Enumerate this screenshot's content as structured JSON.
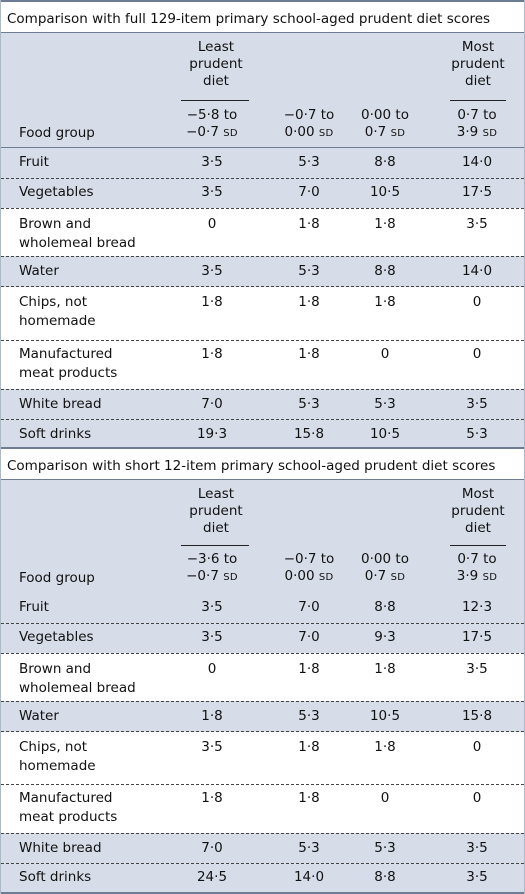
{
  "sections": [
    {
      "title": "Comparison with full 129-item primary school-aged prudent diet scores",
      "least_label": [
        "Least",
        "prudent",
        "diet"
      ],
      "most_label": [
        "Most",
        "prudent",
        "diet"
      ],
      "col_label": "Food group",
      "ranges": [
        {
          "line1": "−5·8 to",
          "line2": "−0·7",
          "unit": "SD"
        },
        {
          "line1": "−0·7 to",
          "line2": "0·00",
          "unit": "SD"
        },
        {
          "line1": "0·00 to",
          "line2": "0·7",
          "unit": "SD"
        },
        {
          "line1": "0·7 to",
          "line2": "3·9",
          "unit": "SD"
        }
      ],
      "rows": [
        {
          "food": [
            "Fruit"
          ],
          "values": [
            "3·5",
            "5·3",
            "8·8",
            "14·0"
          ]
        },
        {
          "food": [
            "Vegetables"
          ],
          "values": [
            "3·5",
            "7·0",
            "10·5",
            "17·5"
          ]
        },
        {
          "food": [
            "Brown and",
            "wholemeal bread"
          ],
          "values": [
            "0",
            "1·8",
            "1·8",
            "3·5"
          ]
        },
        {
          "food": [
            "Water"
          ],
          "values": [
            "3·5",
            "5·3",
            "8·8",
            "14·0"
          ]
        },
        {
          "food": [
            "Chips, not",
            "homemade"
          ],
          "values": [
            "1·8",
            "1·8",
            "1·8",
            "0"
          ]
        },
        {
          "food": [
            "Manufactured",
            "meat products"
          ],
          "values": [
            "1·8",
            "1·8",
            "0",
            "0"
          ]
        },
        {
          "food": [
            "White bread"
          ],
          "values": [
            "7·0",
            "5·3",
            "5·3",
            "3·5"
          ]
        },
        {
          "food": [
            "Soft drinks"
          ],
          "values": [
            "19·3",
            "15·8",
            "10·5",
            "5·3"
          ]
        }
      ]
    },
    {
      "title": "Comparison with short 12-item primary school-aged prudent diet scores",
      "least_label": [
        "Least",
        "prudent",
        "diet"
      ],
      "most_label": [
        "Most",
        "prudent",
        "diet"
      ],
      "col_label": "Food group",
      "ranges": [
        {
          "line1": "−3·6 to",
          "line2": "−0·7",
          "unit": "SD"
        },
        {
          "line1": "−0·7 to",
          "line2": "0·00",
          "unit": "SD"
        },
        {
          "line1": "0·00 to",
          "line2": "0·7",
          "unit": "SD"
        },
        {
          "line1": "0·7 to",
          "line2": "3·9",
          "unit": "SD"
        }
      ],
      "rows": [
        {
          "food": [
            "Fruit"
          ],
          "values": [
            "3·5",
            "7·0",
            "8·8",
            "12·3"
          ]
        },
        {
          "food": [
            "Vegetables"
          ],
          "values": [
            "3·5",
            "7·0",
            "9·3",
            "17·5"
          ]
        },
        {
          "food": [
            "Brown and",
            "wholemeal bread"
          ],
          "values": [
            "0",
            "1·8",
            "1·8",
            "3·5"
          ]
        },
        {
          "food": [
            "Water"
          ],
          "values": [
            "1·8",
            "5·3",
            "10·5",
            "15·8"
          ]
        },
        {
          "food": [
            "Chips, not",
            "homemade"
          ],
          "values": [
            "3·5",
            "1·8",
            "1·8",
            "0"
          ]
        },
        {
          "food": [
            "Manufactured",
            "meat products"
          ],
          "values": [
            "1·8",
            "1·8",
            "0",
            "0"
          ]
        },
        {
          "food": [
            "White bread"
          ],
          "values": [
            "7·0",
            "5·3",
            "5·3",
            "3·5"
          ]
        },
        {
          "food": [
            "Soft drinks"
          ],
          "values": [
            "24·5",
            "14·0",
            "8·8",
            "3·5"
          ]
        }
      ]
    }
  ]
}
